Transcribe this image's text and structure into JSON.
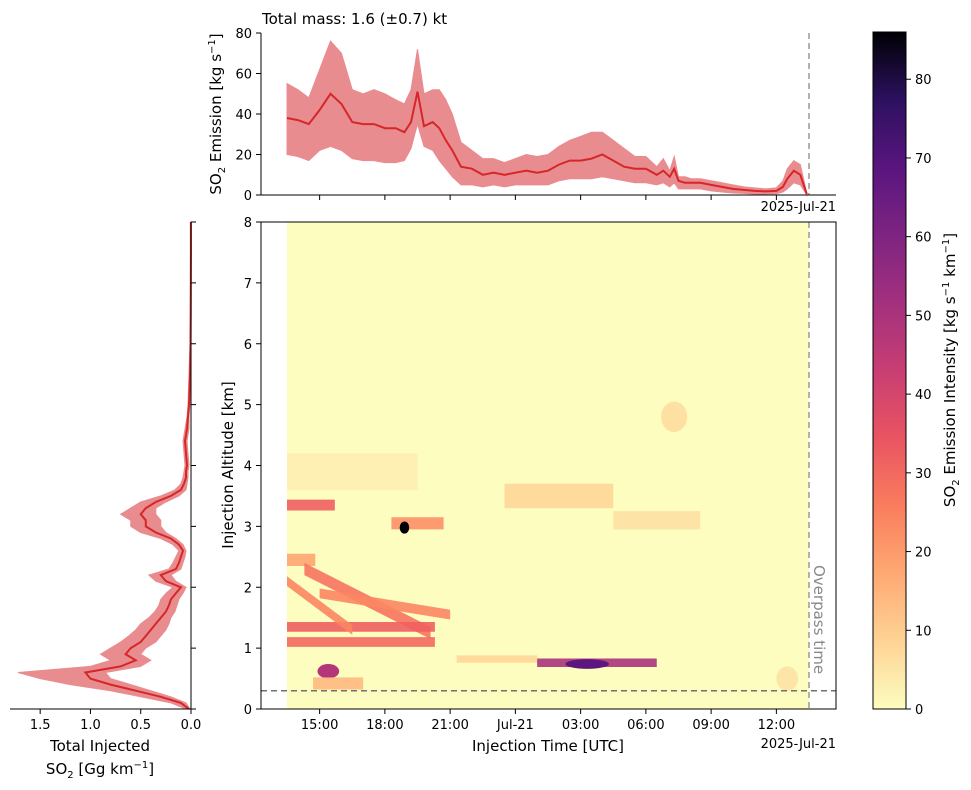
{
  "colors": {
    "line": "#d62728",
    "band": "#e8868a",
    "marker_line": "#a0a0a0",
    "altitude_line": "#707070",
    "overpass_text": "#888888",
    "heat_base": "#fcfdbf"
  },
  "top": {
    "title": "Total mass: 1.6 (±0.7) kt",
    "ylabel_main": "SO",
    "ylabel_sub": "2",
    "ylabel_rest": " Emission [kg s",
    "ylabel_sup": "−1",
    "ylabel_end": "]",
    "date_label": "2025-Jul-21"
  },
  "main": {
    "xlabel": "Injection Time [UTC]",
    "ylabel": "Injection Altitude [km]",
    "date_label": "2025-Jul-21",
    "overpass_label": "Overpass time"
  },
  "left": {
    "xlabel_line1": "Total Injected",
    "xlabel_line2_main": "SO",
    "xlabel_line2_sub": "2",
    "xlabel_line2_rest": " [Gg km",
    "xlabel_line2_sup": "−1",
    "xlabel_line2_end": "]"
  },
  "colorbar": {
    "label_main": "SO",
    "label_sub": "2",
    "label_rest": " Emission Intensity [kg s",
    "label_sup1": "−1",
    "label_mid": " km",
    "label_sup2": "−1",
    "label_end": "]",
    "ticks": [
      "0",
      "10",
      "20",
      "30",
      "40",
      "50",
      "60",
      "70",
      "80"
    ]
  },
  "chart_data": [
    {
      "type": "area",
      "title": "Total mass: 1.6 (±0.7) kt",
      "ylabel": "SO2 Emission [kg s-1]",
      "ylim": [
        0,
        80
      ],
      "yticks": [
        "0",
        "20",
        "40",
        "60",
        "80"
      ],
      "x_hours": [
        0,
        0.5,
        1,
        1.5,
        2,
        2.5,
        3,
        3.5,
        4,
        4.5,
        5,
        5.4,
        5.7,
        6,
        6.3,
        6.7,
        7,
        7.3,
        7.6,
        8,
        8.5,
        9,
        9.5,
        10,
        10.5,
        11,
        11.5,
        12,
        12.5,
        13,
        13.5,
        14,
        14.5,
        15,
        15.5,
        16,
        16.5,
        17,
        17.3,
        17.6,
        17.8,
        18,
        18.3,
        18.6,
        19,
        19.5,
        20,
        20.5,
        21,
        21.5,
        22,
        22.5,
        22.8,
        23,
        23.3,
        23.6,
        23.9
      ],
      "series": [
        {
          "values": [
            38,
            37,
            35,
            42,
            50,
            45,
            36,
            35,
            35,
            33,
            33,
            31,
            36,
            51,
            34,
            36,
            33,
            27,
            22,
            14,
            13,
            10,
            11,
            10,
            11,
            12,
            11,
            12,
            15,
            17,
            17,
            18,
            20,
            17,
            14,
            13,
            13,
            10,
            12,
            9,
            13,
            7,
            6,
            6,
            6,
            5,
            4,
            3,
            2.5,
            2,
            1.8,
            2,
            4,
            8,
            12,
            10,
            0.5
          ]
        }
      ],
      "band_low": [
        20,
        19,
        17,
        22,
        24,
        22,
        18,
        17,
        17,
        16,
        16,
        17,
        23,
        35,
        24,
        22,
        17,
        13,
        9,
        5,
        5,
        4,
        5,
        4,
        5,
        5,
        5,
        5,
        7,
        8,
        8,
        8,
        9,
        8,
        7,
        6,
        6,
        5,
        6,
        4,
        6,
        3,
        3,
        3,
        3,
        2,
        1.5,
        1,
        0.8,
        0.5,
        0.5,
        0.6,
        1.5,
        3,
        6,
        5,
        0
      ],
      "band_high": [
        55,
        52,
        48,
        62,
        76,
        70,
        52,
        50,
        52,
        50,
        47,
        45,
        52,
        72,
        50,
        52,
        52,
        47,
        40,
        26,
        22,
        18,
        18,
        16,
        18,
        20,
        19,
        20,
        24,
        27,
        29,
        31,
        31,
        27,
        23,
        19,
        19,
        14,
        18,
        12,
        19,
        9,
        9,
        8,
        8,
        7,
        6,
        5,
        4,
        3.5,
        3,
        3.5,
        7,
        13,
        17,
        15,
        1
      ]
    },
    {
      "type": "heatmap",
      "xlabel": "Injection Time [UTC]",
      "ylabel": "Injection Altitude [km]",
      "xticks": [
        "15:00",
        "18:00",
        "21:00",
        "Jul-21",
        "03:00",
        "06:00",
        "09:00",
        "12:00"
      ],
      "xtick_hours": [
        1.5,
        4.5,
        7.5,
        10.5,
        13.5,
        16.5,
        19.5,
        22.5
      ],
      "yticks": [
        "0",
        "1",
        "2",
        "3",
        "4",
        "5",
        "6",
        "7",
        "8"
      ],
      "ylim": [
        0,
        8
      ],
      "xlim_hours": [
        -1.3,
        25.3
      ],
      "data_start_hour": 0,
      "overpass_hour": 24,
      "reference_altitude_km": 0.3,
      "clim": [
        0,
        86
      ],
      "features": [
        {
          "t0": 0,
          "t1": 2.2,
          "z": 3.35,
          "dz": 0.09,
          "v": 32
        },
        {
          "t0": 4.8,
          "t1": 7.2,
          "z": 3.05,
          "dz": 0.1,
          "v": 22
        },
        {
          "t": 5.4,
          "z": 2.98,
          "dt": 0.22,
          "dz": 0.1,
          "v": 86
        },
        {
          "t0": 0,
          "t1": 1.3,
          "z": 2.45,
          "dz": 0.1,
          "v": 18
        },
        {
          "t0": 0.8,
          "t1": 6.6,
          "z0": 2.3,
          "z1": 1.25,
          "dz": 0.1,
          "v": 28
        },
        {
          "t0": 0,
          "t1": 6.8,
          "z": 1.35,
          "dz": 0.08,
          "v": 32
        },
        {
          "t0": 0,
          "t1": 6.8,
          "z": 1.1,
          "dz": 0.08,
          "v": 30
        },
        {
          "t0": 1.5,
          "t1": 7.5,
          "z0": 1.9,
          "z1": 1.55,
          "dz": 0.08,
          "v": 24
        },
        {
          "t0": 0,
          "t1": 3.0,
          "z0": 2.1,
          "z1": 1.3,
          "dz": 0.08,
          "v": 24
        },
        {
          "t0": 7.8,
          "t1": 11.5,
          "z": 0.82,
          "dz": 0.06,
          "v": 8
        },
        {
          "t0": 11.5,
          "t1": 17.0,
          "z": 0.76,
          "dz": 0.07,
          "v": 50
        },
        {
          "t": 13.8,
          "z": 0.74,
          "dt": 1.0,
          "dz": 0.08,
          "v": 68
        },
        {
          "t": 1.9,
          "z": 0.62,
          "dt": 0.5,
          "dz": 0.12,
          "v": 48
        },
        {
          "t0": 1.2,
          "t1": 3.5,
          "z": 0.42,
          "dz": 0.1,
          "v": 14
        },
        {
          "t0": 10,
          "t1": 15,
          "z": 3.5,
          "dz": 0.2,
          "v": 8
        },
        {
          "t0": 15,
          "t1": 19,
          "z": 3.1,
          "dz": 0.15,
          "v": 6
        },
        {
          "t": 17.8,
          "z": 4.8,
          "dt": 0.6,
          "dz": 0.25,
          "v": 6
        },
        {
          "t0": 0,
          "t1": 6,
          "z": 3.9,
          "dz": 0.3,
          "v": 3
        },
        {
          "t": 23,
          "z": 0.5,
          "dt": 0.5,
          "dz": 0.2,
          "v": 5
        }
      ]
    },
    {
      "type": "line",
      "xlabel": "Total Injected SO2 [Gg km-1]",
      "xlim": [
        1.8,
        0
      ],
      "xticks": [
        "1.5",
        "1.0",
        "0.5",
        "0.0"
      ],
      "altitude_km": [
        0,
        0.1,
        0.2,
        0.3,
        0.4,
        0.5,
        0.6,
        0.7,
        0.8,
        0.9,
        1.0,
        1.1,
        1.2,
        1.3,
        1.4,
        1.5,
        1.6,
        1.7,
        1.8,
        1.9,
        2.0,
        2.1,
        2.2,
        2.3,
        2.4,
        2.5,
        2.6,
        2.7,
        2.8,
        2.9,
        3.0,
        3.1,
        3.2,
        3.3,
        3.4,
        3.5,
        3.6,
        3.7,
        3.8,
        3.9,
        4.0,
        4.2,
        4.4,
        4.6,
        4.8,
        5.0,
        5.5,
        6.0,
        6.5,
        7.0,
        7.5,
        8.0
      ],
      "values": [
        0.02,
        0.1,
        0.3,
        0.55,
        0.8,
        1.0,
        1.05,
        0.7,
        0.55,
        0.65,
        0.6,
        0.5,
        0.45,
        0.4,
        0.35,
        0.3,
        0.25,
        0.22,
        0.2,
        0.15,
        0.1,
        0.25,
        0.3,
        0.15,
        0.12,
        0.1,
        0.08,
        0.12,
        0.2,
        0.35,
        0.45,
        0.45,
        0.5,
        0.45,
        0.35,
        0.2,
        0.1,
        0.07,
        0.05,
        0.05,
        0.04,
        0.05,
        0.06,
        0.04,
        0.03,
        0.02,
        0.01,
        0.005,
        0.003,
        0.002,
        0.001,
        0.001
      ],
      "band_low": [
        0.01,
        0.05,
        0.2,
        0.4,
        0.6,
        0.8,
        0.85,
        0.5,
        0.4,
        0.5,
        0.45,
        0.35,
        0.3,
        0.25,
        0.22,
        0.2,
        0.16,
        0.14,
        0.12,
        0.08,
        0.05,
        0.15,
        0.2,
        0.1,
        0.08,
        0.06,
        0.05,
        0.08,
        0.15,
        0.25,
        0.3,
        0.3,
        0.35,
        0.35,
        0.25,
        0.12,
        0.05,
        0.04,
        0.03,
        0.03,
        0.02,
        0.03,
        0.04,
        0.02,
        0.02,
        0.01,
        0.005,
        0.003,
        0.002,
        0.001,
        0.0005,
        0.0005
      ],
      "band_high": [
        0.05,
        0.2,
        0.5,
        0.8,
        1.2,
        1.5,
        1.72,
        1.0,
        0.8,
        0.9,
        0.8,
        0.7,
        0.62,
        0.55,
        0.5,
        0.42,
        0.36,
        0.32,
        0.3,
        0.25,
        0.18,
        0.35,
        0.42,
        0.22,
        0.18,
        0.15,
        0.12,
        0.18,
        0.3,
        0.5,
        0.6,
        0.6,
        0.7,
        0.6,
        0.5,
        0.3,
        0.16,
        0.1,
        0.08,
        0.07,
        0.06,
        0.07,
        0.08,
        0.06,
        0.04,
        0.03,
        0.02,
        0.01,
        0.006,
        0.004,
        0.003,
        0.003
      ]
    }
  ]
}
